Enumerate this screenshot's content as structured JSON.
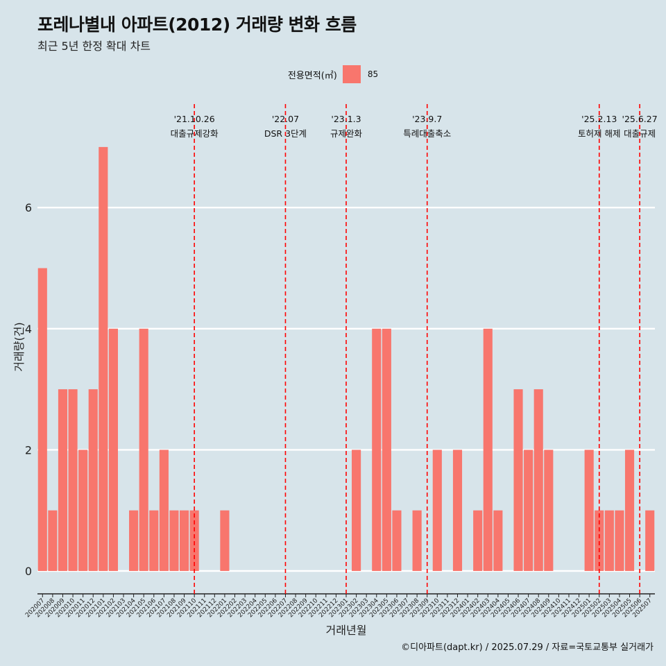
{
  "title": "포레나별내 아파트(2012) 거래량 변화 흐름",
  "subtitle": "최근 5년 한정 확대 차트",
  "credit": "©디아파트(dapt.kr) / 2025.07.29 / 자료=국토교통부 실거래가",
  "colors": {
    "background": "#d7e4ea",
    "bar": "#f8766d",
    "event_line": "#ff0000",
    "grid": "#ffffff"
  },
  "legend": {
    "title": "전용면적(㎡)",
    "items": [
      {
        "label": "85",
        "color": "#f8766d"
      }
    ]
  },
  "chart_data": {
    "type": "bar",
    "xlabel": "거래년월",
    "ylabel": "거래량(건)",
    "ylim": [
      0,
      7.5
    ],
    "yticks": [
      0,
      2,
      4,
      6
    ],
    "grid": true,
    "legend_position": "top",
    "categories": [
      "202007",
      "202008",
      "202009",
      "202010",
      "202011",
      "202012",
      "202101",
      "202102",
      "202103",
      "202104",
      "202105",
      "202106",
      "202107",
      "202108",
      "202109",
      "202110",
      "202111",
      "202112",
      "202201",
      "202202",
      "202203",
      "202204",
      "202205",
      "202206",
      "202207",
      "202208",
      "202209",
      "202210",
      "202211",
      "202212",
      "202301",
      "202302",
      "202303",
      "202304",
      "202305",
      "202306",
      "202307",
      "202308",
      "202309",
      "202310",
      "202311",
      "202312",
      "202401",
      "202402",
      "202403",
      "202404",
      "202405",
      "202406",
      "202407",
      "202408",
      "202409",
      "202410",
      "202411",
      "202412",
      "202501",
      "202502",
      "202503",
      "202504",
      "202505",
      "202506",
      "202507"
    ],
    "series": [
      {
        "name": "85",
        "values": [
          5,
          1,
          3,
          3,
          2,
          3,
          7,
          4,
          0,
          1,
          4,
          1,
          2,
          1,
          1,
          1,
          0,
          0,
          1,
          0,
          0,
          0,
          0,
          0,
          0,
          0,
          0,
          0,
          0,
          0,
          0,
          2,
          0,
          4,
          4,
          1,
          0,
          1,
          0,
          2,
          0,
          2,
          0,
          1,
          4,
          1,
          0,
          3,
          2,
          3,
          2,
          0,
          0,
          0,
          2,
          1,
          1,
          1,
          2,
          0,
          1
        ]
      }
    ],
    "events": [
      {
        "x": "202110",
        "date": "'21.10.26",
        "label": "대출규제강화"
      },
      {
        "x": "202207",
        "date": "'22.07",
        "label": "DSR 3단계"
      },
      {
        "x": "202301",
        "date": "'23.1.3",
        "label": "규제완화"
      },
      {
        "x": "202309",
        "date": "'23.9.7",
        "label": "특례대출축소"
      },
      {
        "x": "202502",
        "date": "'25.2.13",
        "label": "토허제 해제"
      },
      {
        "x": "202506",
        "date": "'25.6.27",
        "label": "대출규제"
      }
    ]
  }
}
